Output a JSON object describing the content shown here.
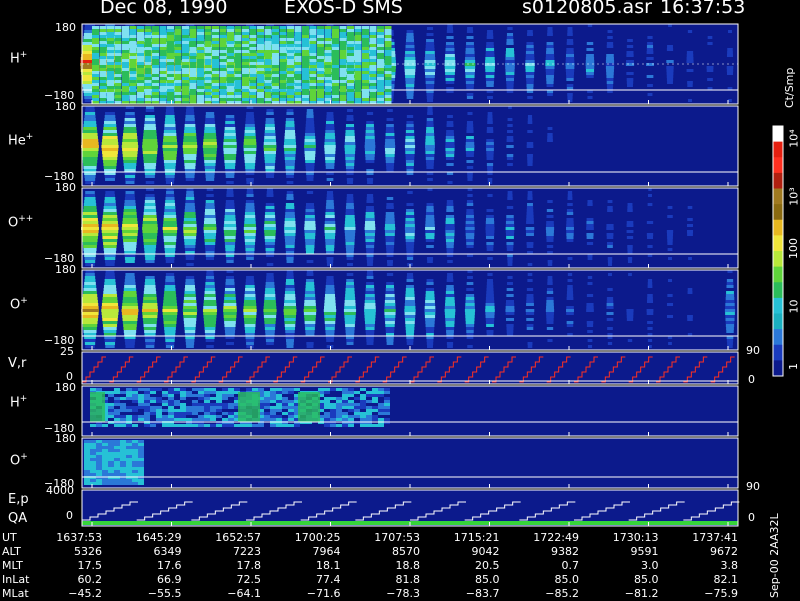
{
  "header": {
    "date": "Dec 08, 1990",
    "mission": "EXOS-D SMS",
    "file": "s0120805.asr",
    "time": "16:37:53"
  },
  "panels": {
    "p1": {
      "label": "H",
      "sup": "+",
      "top": "180",
      "bottom": "−180"
    },
    "p2": {
      "label": "He",
      "sup": "+",
      "top": "180",
      "bottom": "−180"
    },
    "p3": {
      "label": "O",
      "sup": "++",
      "top": "180",
      "bottom": "−180"
    },
    "p4": {
      "label": "O",
      "sup": "+",
      "top": "180",
      "bottom": "−180"
    },
    "vr": {
      "label": "V,r",
      "top": "25",
      "bottom": "0",
      "right_top": "90",
      "right_bottom": "0"
    },
    "p6": {
      "label": "H",
      "sup": "+",
      "top": "180",
      "bottom": "−180"
    },
    "p7": {
      "label": "O",
      "sup": "+",
      "top": "180",
      "bottom": "−180"
    },
    "ep": {
      "label1": "E,p",
      "label2": "QA",
      "top": "4000",
      "bottom": "0",
      "right_top": "90",
      "right_bottom": "0"
    }
  },
  "colorbar": {
    "unit": "Ct/Smp",
    "ticks": [
      "10⁴",
      "10³",
      "100",
      "10",
      "1"
    ]
  },
  "footer_label": "Sep-00 2AA32L",
  "orbit_table": {
    "headers": [
      "UT",
      "ALT",
      "MLT",
      "InLat",
      "MLat"
    ],
    "rows": [
      [
        "1637:53",
        "1645:29",
        "1652:57",
        "1700:25",
        "1707:53",
        "1715:21",
        "1722:49",
        "1730:13",
        "1737:41"
      ],
      [
        "5326",
        "6349",
        "7223",
        "7964",
        "8570",
        "9042",
        "9382",
        "9591",
        "9672"
      ],
      [
        "17.5",
        "17.6",
        "17.8",
        "18.1",
        "18.8",
        "20.5",
        "0.7",
        "3.0",
        "3.8"
      ],
      [
        "60.2",
        "66.9",
        "72.5",
        "77.4",
        "81.8",
        "85.0",
        "85.0",
        "85.0",
        "82.1"
      ],
      [
        "−45.2",
        "−55.5",
        "−64.1",
        "−71.6",
        "−78.3",
        "−83.7",
        "−85.2",
        "−81.2",
        "−75.9"
      ]
    ]
  },
  "chart_data": {
    "type": "heatmap",
    "title": "Dec 08, 1990 EXOS-D SMS",
    "subtitle": "s0120805.asr 16:37:53",
    "colorbar_label": "Ct/Smp",
    "colorbar_range": [
      1,
      10000
    ],
    "colorbar_scale": "log",
    "x_ticks": [
      "1637:53",
      "1645:29",
      "1652:57",
      "1700:25",
      "1707:53",
      "1715:21",
      "1722:49",
      "1730:13",
      "1737:41"
    ],
    "panels": [
      {
        "name": "H+",
        "ylim": [
          -180,
          180
        ]
      },
      {
        "name": "He+",
        "ylim": [
          -180,
          180
        ]
      },
      {
        "name": "O++",
        "ylim": [
          -180,
          180
        ]
      },
      {
        "name": "O+",
        "ylim": [
          -180,
          180
        ]
      },
      {
        "name": "V,r",
        "ylim": [
          0,
          25
        ],
        "y2lim": [
          0,
          90
        ]
      },
      {
        "name": "H+",
        "ylim": [
          -180,
          180
        ]
      },
      {
        "name": "O+",
        "ylim": [
          -180,
          180
        ]
      },
      {
        "name": "E,p QA",
        "ylim": [
          0,
          4000
        ],
        "y2lim": [
          0,
          90
        ]
      }
    ]
  }
}
